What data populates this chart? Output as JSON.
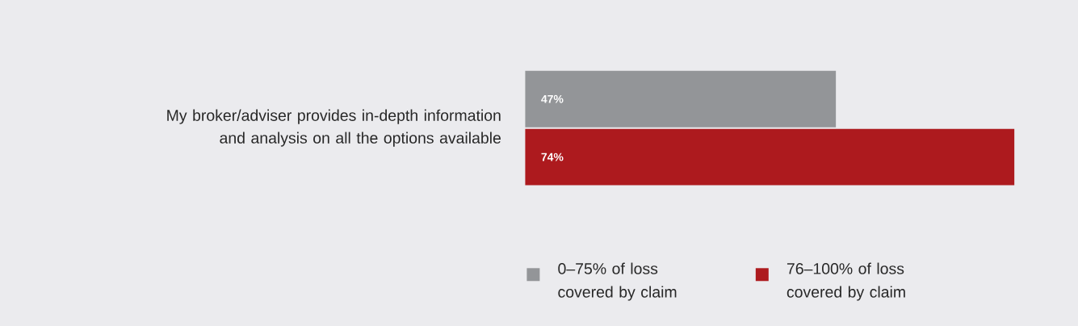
{
  "chart_data": {
    "type": "bar",
    "orientation": "horizontal",
    "categories": [
      "My broker/adviser provides in-depth information and analysis on all the options available"
    ],
    "series": [
      {
        "name": "0–75% of loss covered by claim",
        "color": "#939598",
        "values": [
          47
        ],
        "value_labels": [
          "47%"
        ]
      },
      {
        "name": "76–100% of loss covered by claim",
        "color": "#ad1a1e",
        "values": [
          74
        ],
        "value_labels": [
          "74%"
        ]
      }
    ],
    "legend": "bottom",
    "tick_labels": "y"
  }
}
